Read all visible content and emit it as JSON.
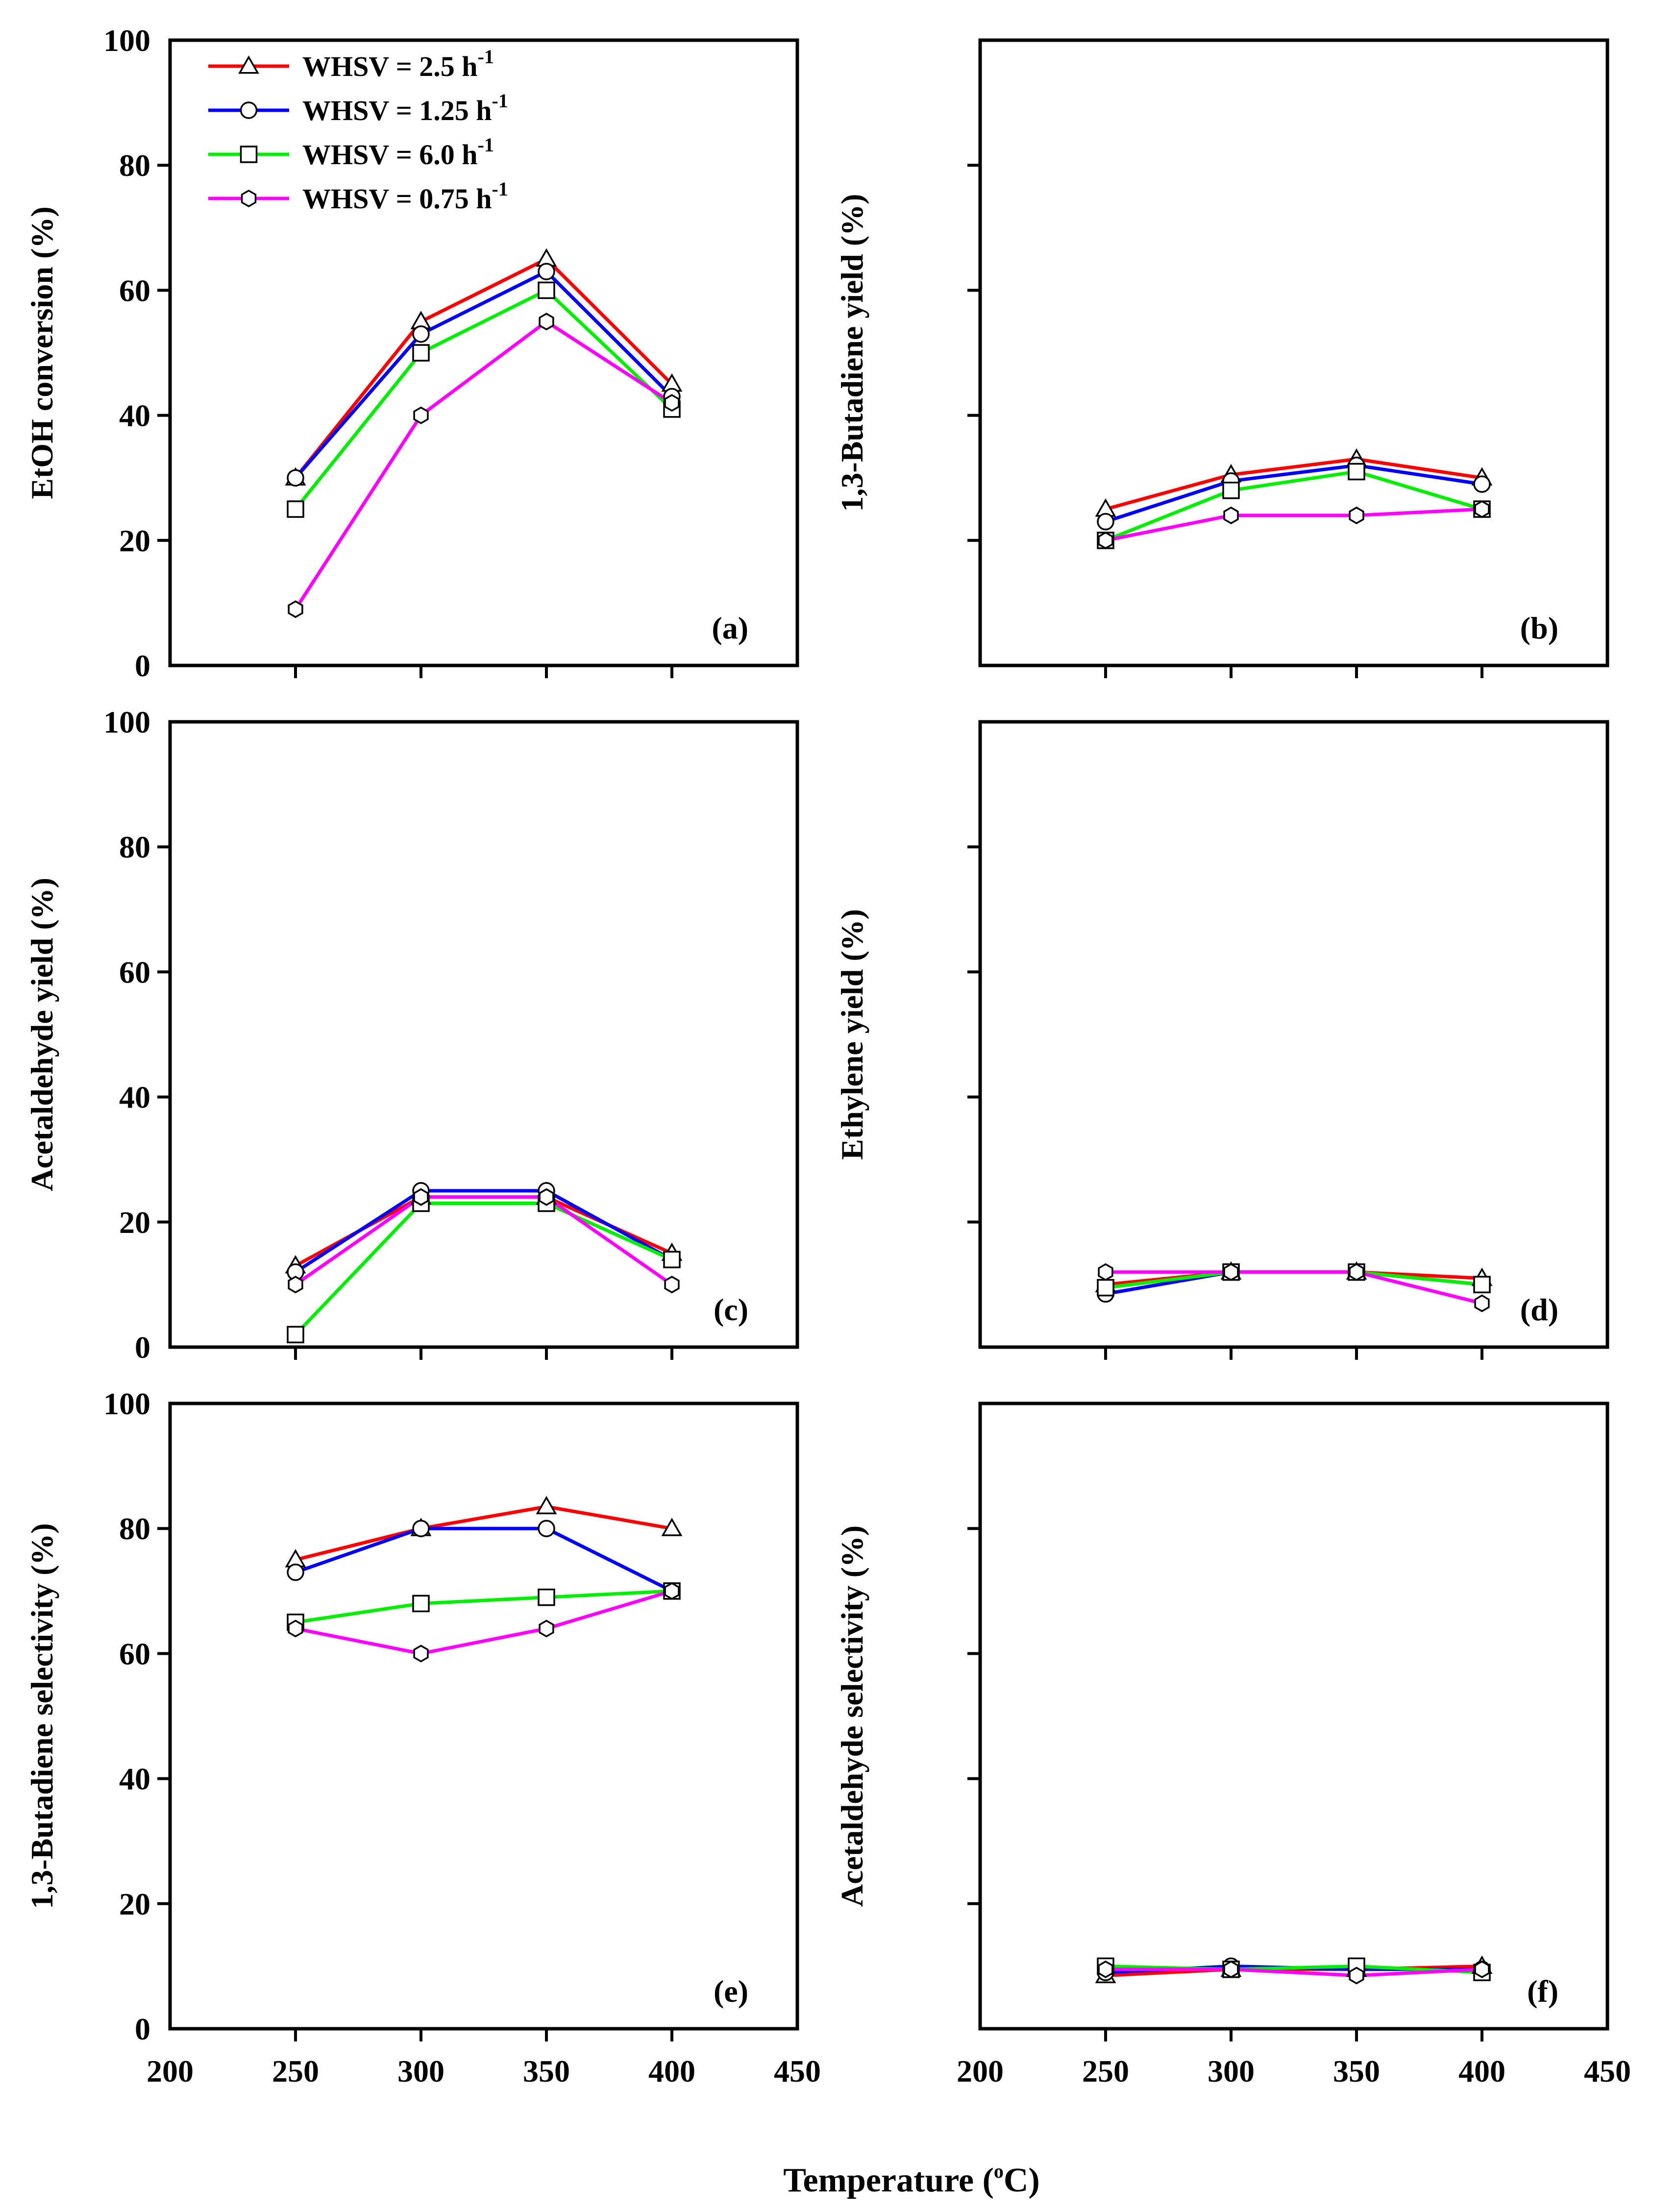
{
  "figure": {
    "x_axis_title": "Temperature (",
    "x_axis_title_sup": "o",
    "x_axis_title_end": "C)"
  },
  "legend": {
    "entries": [
      {
        "label": "WHSV = 2.5 h",
        "sup": "-1",
        "marker": "triangle-icon",
        "color": "#ff0000"
      },
      {
        "label": "WHSV = 1.25 h",
        "sup": "-1",
        "marker": "circle-icon",
        "color": "#0000ff"
      },
      {
        "label": "WHSV = 6.0 h",
        "sup": "-1",
        "marker": "square-icon",
        "color": "#00ee00"
      },
      {
        "label": "WHSV = 0.75 h",
        "sup": "-1",
        "marker": "hexagon-icon",
        "color": "#ff00ff"
      }
    ]
  },
  "chart_data": [
    {
      "type": "line",
      "panel": "(a)",
      "ylabel": "EtOH conversion (%)",
      "x": [
        250,
        300,
        350,
        400
      ],
      "xlim": [
        200,
        450
      ],
      "ylim": [
        0,
        100
      ],
      "xticks": [
        200,
        250,
        300,
        350,
        400,
        450
      ],
      "yticks": [
        0,
        20,
        40,
        60,
        80,
        100
      ],
      "show_xtick_labels": false,
      "show_ytick_labels": true,
      "series": [
        {
          "name": "WHSV = 2.5 h-1",
          "values": [
            30,
            55,
            65,
            45
          ]
        },
        {
          "name": "WHSV = 1.25 h-1",
          "values": [
            30,
            53,
            63,
            43
          ]
        },
        {
          "name": "WHSV = 6.0 h-1",
          "values": [
            25,
            50,
            60,
            41
          ]
        },
        {
          "name": "WHSV = 0.75 h-1",
          "values": [
            9,
            40,
            55,
            42
          ]
        }
      ]
    },
    {
      "type": "line",
      "panel": "(b)",
      "ylabel": "1,3-Butadiene yield (%)",
      "x": [
        250,
        300,
        350,
        400
      ],
      "xlim": [
        200,
        450
      ],
      "ylim": [
        0,
        100
      ],
      "xticks": [
        200,
        250,
        300,
        350,
        400,
        450
      ],
      "yticks": [
        0,
        20,
        40,
        60,
        80,
        100
      ],
      "show_xtick_labels": false,
      "show_ytick_labels": false,
      "series": [
        {
          "name": "WHSV = 2.5 h-1",
          "values": [
            25,
            30.5,
            33,
            30
          ]
        },
        {
          "name": "WHSV = 1.25 h-1",
          "values": [
            23,
            29.5,
            32,
            29
          ]
        },
        {
          "name": "WHSV = 6.0 h-1",
          "values": [
            20,
            28,
            31,
            25
          ]
        },
        {
          "name": "WHSV = 0.75 h-1",
          "values": [
            20,
            24,
            24,
            25
          ]
        }
      ]
    },
    {
      "type": "line",
      "panel": "(c)",
      "ylabel": "Acetaldehyde yield (%)",
      "x": [
        250,
        300,
        350,
        400
      ],
      "xlim": [
        200,
        450
      ],
      "ylim": [
        0,
        100
      ],
      "xticks": [
        200,
        250,
        300,
        350,
        400,
        450
      ],
      "yticks": [
        0,
        20,
        40,
        60,
        80,
        100
      ],
      "show_xtick_labels": false,
      "show_ytick_labels": true,
      "series": [
        {
          "name": "WHSV = 2.5 h-1",
          "values": [
            13,
            24,
            24,
            15
          ]
        },
        {
          "name": "WHSV = 1.25 h-1",
          "values": [
            12,
            25,
            25,
            14
          ]
        },
        {
          "name": "WHSV = 6.0 h-1",
          "values": [
            2,
            23,
            23,
            14
          ]
        },
        {
          "name": "WHSV = 0.75 h-1",
          "values": [
            10,
            24,
            24,
            10
          ]
        }
      ]
    },
    {
      "type": "line",
      "panel": "(d)",
      "ylabel": "Ethylene yield (%)",
      "x": [
        250,
        300,
        350,
        400
      ],
      "xlim": [
        200,
        450
      ],
      "ylim": [
        0,
        100
      ],
      "xticks": [
        200,
        250,
        300,
        350,
        400,
        450
      ],
      "yticks": [
        0,
        20,
        40,
        60,
        80,
        100
      ],
      "show_xtick_labels": false,
      "show_ytick_labels": false,
      "series": [
        {
          "name": "WHSV = 2.5 h-1",
          "values": [
            10,
            12,
            12,
            11
          ]
        },
        {
          "name": "WHSV = 1.25 h-1",
          "values": [
            8.5,
            12,
            12,
            10
          ]
        },
        {
          "name": "WHSV = 6.0 h-1",
          "values": [
            9.5,
            12,
            12,
            10
          ]
        },
        {
          "name": "WHSV = 0.75 h-1",
          "values": [
            12,
            12,
            12,
            7
          ]
        }
      ]
    },
    {
      "type": "line",
      "panel": "(e)",
      "ylabel": "1,3-Butadiene selectivity (%)",
      "x": [
        250,
        300,
        350,
        400
      ],
      "xlim": [
        200,
        450
      ],
      "ylim": [
        0,
        100
      ],
      "xticks": [
        200,
        250,
        300,
        350,
        400,
        450
      ],
      "yticks": [
        0,
        20,
        40,
        60,
        80,
        100
      ],
      "show_xtick_labels": true,
      "show_ytick_labels": true,
      "series": [
        {
          "name": "WHSV = 2.5 h-1",
          "values": [
            75,
            80,
            83.5,
            80
          ]
        },
        {
          "name": "WHSV = 1.25 h-1",
          "values": [
            73,
            80,
            80,
            70
          ]
        },
        {
          "name": "WHSV = 6.0 h-1",
          "values": [
            65,
            68,
            69,
            70
          ]
        },
        {
          "name": "WHSV = 0.75 h-1",
          "values": [
            64,
            60,
            64,
            70
          ]
        }
      ]
    },
    {
      "type": "line",
      "panel": "(f)",
      "ylabel": "Acetaldehyde selectivity (%)",
      "x": [
        250,
        300,
        350,
        400
      ],
      "xlim": [
        200,
        450
      ],
      "ylim": [
        0,
        100
      ],
      "xticks": [
        200,
        250,
        300,
        350,
        400,
        450
      ],
      "yticks": [
        0,
        20,
        40,
        60,
        80,
        100
      ],
      "show_xtick_labels": true,
      "show_ytick_labels": false,
      "series": [
        {
          "name": "WHSV = 2.5 h-1",
          "values": [
            8.5,
            9.5,
            9.5,
            10
          ]
        },
        {
          "name": "WHSV = 1.25 h-1",
          "values": [
            9,
            10,
            9.5,
            9.5
          ]
        },
        {
          "name": "WHSV = 6.0 h-1",
          "values": [
            10,
            9.5,
            10,
            9
          ]
        },
        {
          "name": "WHSV = 0.75 h-1",
          "values": [
            9.5,
            9.5,
            8.5,
            9.5
          ]
        }
      ]
    }
  ]
}
